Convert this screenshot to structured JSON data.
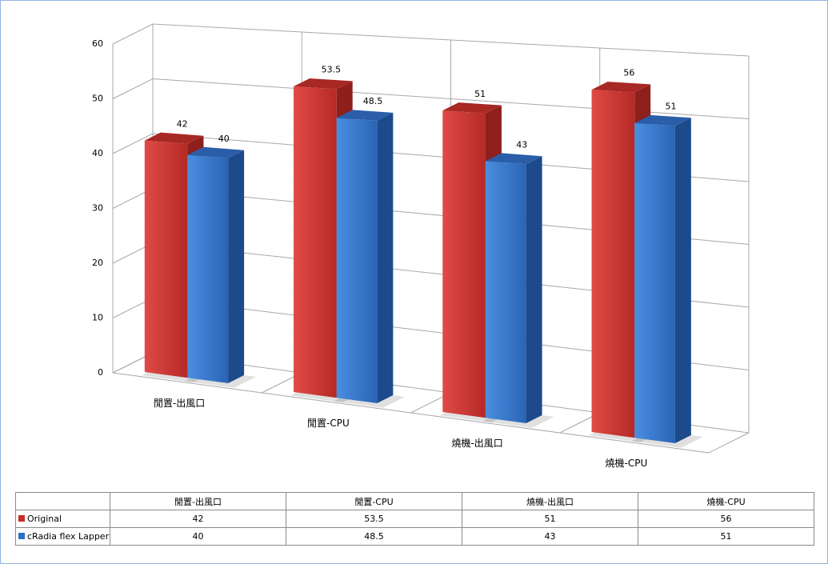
{
  "chart_data": {
    "type": "bar",
    "categories": [
      "閒置-出風口",
      "閒置-CPU",
      "燒機-出風口",
      "燒機-CPU"
    ],
    "series": [
      {
        "name": "Original",
        "color": "#c0302c",
        "values": [
          42,
          53.5,
          51,
          56
        ]
      },
      {
        "name": "cRadia flex Lapper",
        "color": "#2f6fc4",
        "values": [
          40,
          48.5,
          43,
          51
        ]
      }
    ],
    "ylim": [
      0,
      60
    ],
    "yticks": [
      0,
      10,
      20,
      30,
      40,
      50,
      60
    ],
    "grid": true,
    "data_table": true
  }
}
